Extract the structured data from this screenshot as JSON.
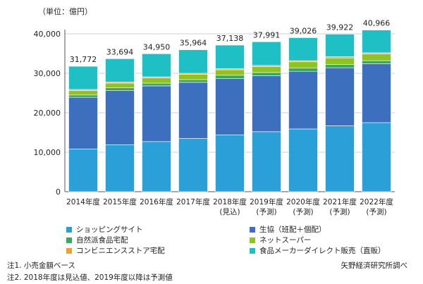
{
  "unit_label": "（単位：億円）",
  "chart_data": {
    "type": "bar",
    "stacked": true,
    "categories": [
      [
        "2014年度"
      ],
      [
        "2015年度"
      ],
      [
        "2016年度"
      ],
      [
        "2017年度"
      ],
      [
        "2018年度",
        "(見込)"
      ],
      [
        "2019年度",
        "(予測)"
      ],
      [
        "2020年度",
        "(予測)"
      ],
      [
        "2021年度",
        "(予測)"
      ],
      [
        "2022年度",
        "(予測)"
      ]
    ],
    "ylim": [
      0,
      40000
    ],
    "yticks": [
      "0",
      "10,000",
      "20,000",
      "30,000",
      "40,000"
    ],
    "ytick_values": [
      0,
      10000,
      20000,
      30000,
      40000
    ],
    "totals": [
      31772,
      33694,
      34950,
      35964,
      37138,
      37991,
      39026,
      39922,
      40966
    ],
    "total_labels": [
      "31,772",
      "33,694",
      "34,950",
      "35,964",
      "37,138",
      "37,991",
      "39,026",
      "39,922",
      "40,966"
    ],
    "series": [
      {
        "name": "ショッピングサイト",
        "color": "#2a9fd8",
        "values": [
          10800,
          11900,
          12700,
          13500,
          14400,
          15200,
          15900,
          16700,
          17500
        ]
      },
      {
        "name": "生協（班配＋個配）",
        "color": "#3c6fbe",
        "values": [
          13100,
          13700,
          14100,
          14200,
          14300,
          14200,
          14600,
          14700,
          14900
        ]
      },
      {
        "name": "自然派食品宅配",
        "color": "#36a95f",
        "values": [
          600,
          700,
          700,
          700,
          800,
          800,
          800,
          800,
          800
        ]
      },
      {
        "name": "ネットスーパー",
        "color": "#8fc31f",
        "values": [
          1100,
          1200,
          1300,
          1300,
          1400,
          1500,
          1600,
          1700,
          1700
        ]
      },
      {
        "name": "コンビニエンスストア宅配",
        "color": "#f0a030",
        "values": [
          300,
          300,
          300,
          300,
          300,
          300,
          300,
          300,
          300
        ]
      },
      {
        "name": "食品メーカーダイレクト販売（直販）",
        "color": "#1fbfc6",
        "values": [
          5872,
          5894,
          5850,
          5964,
          5938,
          5991,
          5826,
          5722,
          5766
        ]
      }
    ]
  },
  "notes": [
    "注1. 小売金額ベース",
    "注2. 2018年度は見込値、2019年度以降は予測値"
  ],
  "source": "矢野経済研究所調べ"
}
